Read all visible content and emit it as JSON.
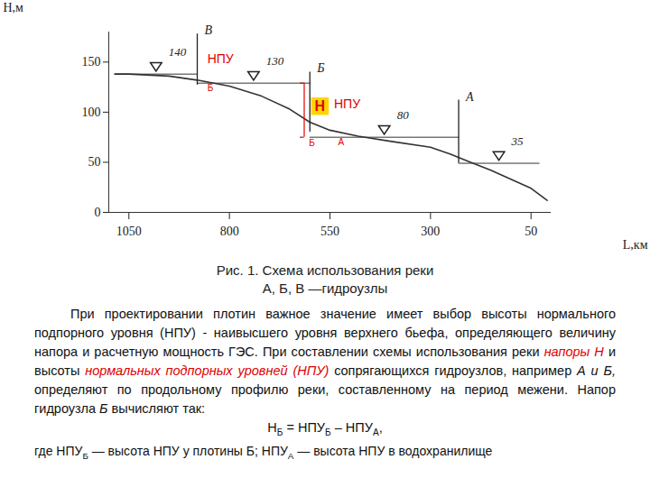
{
  "chart_data": {
    "type": "line",
    "x_label": "L,км",
    "y_label": "H,м",
    "xlim": [
      1100,
      0
    ],
    "ylim": [
      0,
      180
    ],
    "xticks": [
      1050,
      800,
      550,
      300,
      50
    ],
    "yticks": [
      0,
      50,
      100,
      150
    ],
    "color": "#333333",
    "profile": {
      "x": [
        1085,
        1050,
        950,
        880,
        800,
        720,
        650,
        600,
        550,
        480,
        400,
        300,
        250,
        200,
        150,
        100,
        50,
        10
      ],
      "y": [
        138,
        138,
        136,
        132,
        126,
        116,
        103,
        90,
        82,
        76,
        71,
        65,
        58,
        50,
        42,
        33,
        24,
        12
      ]
    },
    "dams": [
      {
        "name": "В",
        "x": 880,
        "bottom": 127,
        "top": 178
      },
      {
        "name": "Б",
        "x": 600,
        "bottom": 80,
        "top": 140
      },
      {
        "name": "А",
        "x": 230,
        "bottom": 49,
        "top": 112
      }
    ],
    "pools": [
      {
        "text": "140",
        "x": [
          1085,
          880
        ],
        "y": 138
      },
      {
        "text": "130",
        "x": [
          880,
          600
        ],
        "y": 129
      },
      {
        "text": "80",
        "x": [
          600,
          230
        ],
        "y": 75
      },
      {
        "text": "35",
        "x": [
          230,
          30
        ],
        "y": 49
      }
    ],
    "annotations": {
      "npu_b": [
        "НПУ",
        "Б"
      ],
      "head": [
        "Н",
        "Б"
      ],
      "npu_a": [
        "НПУ",
        "А"
      ]
    }
  },
  "caption": [
    "Рис. 1. Схема использования реки",
    "А, Б, В —гидроузлы"
  ],
  "paragraph": [
    {
      "text": "При проектировании плотин важное значение имеет выбор высоты нормального подпорного уровня (НПУ) - наивысшего уровня верхнего бьефа, определяющего величину напора и расчетную мощность ГЭС. При составлении схемы использования реки ",
      "style": "plain"
    },
    {
      "text": "напоры Н",
      "style": "red_italic"
    },
    {
      "text": " и высоты ",
      "style": "plain"
    },
    {
      "text": "нормальных подпорных уровней (НПУ)",
      "style": "red_italic"
    },
    {
      "text": " сопрягающихся гидроузлов, например ",
      "style": "plain"
    },
    {
      "text": "А и Б,",
      "style": "italic"
    },
    {
      "text": " определяют по продольному профилю реки, составленному на период межени. Напор гидроузла ",
      "style": "plain"
    },
    {
      "text": "Б",
      "style": "italic"
    },
    {
      "text": " вычисляют так:",
      "style": "plain"
    }
  ],
  "formula": [
    {
      "text": "Н",
      "style": "plain"
    },
    {
      "text": "Б",
      "style": "sub"
    },
    {
      "text": " = НПУ",
      "style": "plain"
    },
    {
      "text": "Б",
      "style": "sub"
    },
    {
      "text": " – НПУ",
      "style": "plain"
    },
    {
      "text": "А",
      "style": "sub"
    },
    {
      "text": ",",
      "style": "plain"
    }
  ],
  "last_line": [
    {
      "text": "где НПУ",
      "style": "plain"
    },
    {
      "text": "Б",
      "style": "sub"
    },
    {
      "text": " — высота НПУ у плотины Б; НПУ",
      "style": "plain"
    },
    {
      "text": "А",
      "style": "sub"
    },
    {
      "text": " — высота НПУ в водохранилище",
      "style": "plain"
    }
  ]
}
